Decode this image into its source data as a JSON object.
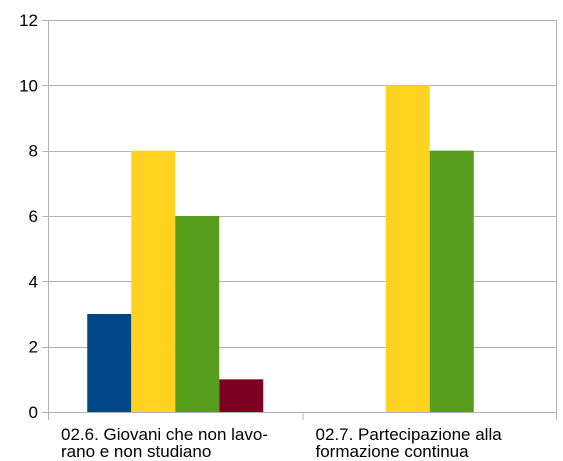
{
  "chart_data": {
    "type": "bar",
    "categories": [
      [
        "02.6. Giovani che non lavo-",
        "rano e non studiano"
      ],
      [
        "02.7. Partecipazione alla",
        "formazione continua"
      ]
    ],
    "series": [
      {
        "color": "#004586",
        "values": [
          3,
          0
        ]
      },
      {
        "color": "#ffd320",
        "values": [
          8,
          10
        ]
      },
      {
        "color": "#579d1c",
        "values": [
          6,
          8
        ]
      },
      {
        "color": "#7e0021",
        "values": [
          1,
          0
        ]
      }
    ],
    "ylim": [
      0,
      12
    ],
    "yticks": [
      "0",
      "2",
      "4",
      "6",
      "8",
      "10",
      "12"
    ],
    "grid": true,
    "gridColor": "#b3b3b3"
  }
}
